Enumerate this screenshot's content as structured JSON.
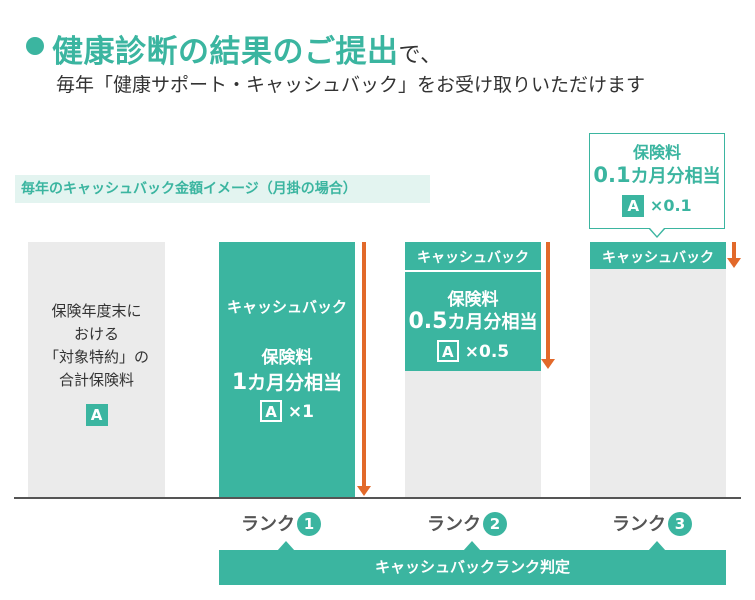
{
  "header": {
    "title": "健康診断の結果のご提出",
    "title_suffix": "で、",
    "subtitle": "毎年「健康サポート・キャッシュバック」をお受け取りいただけます"
  },
  "image_label": "毎年のキャッシュバック金額イメージ（月掛の場合）",
  "base_column": {
    "lines": [
      "保険年度末に",
      "おける",
      "「対象特約」の",
      "合計保険料"
    ],
    "badge": "A"
  },
  "rank1": {
    "cashback_label": "キャッシュバック",
    "premium": "保険料",
    "month_num": "1",
    "month_text": "カ月分相当",
    "badge": "A",
    "multiplier": "×1",
    "fill_fraction": 1.0
  },
  "rank2": {
    "cashback_label": "キャッシュバック",
    "premium": "保険料",
    "month_num": "0.5",
    "month_text": "カ月分相当",
    "badge": "A",
    "multiplier": "×0.5",
    "fill_fraction": 0.5
  },
  "rank3": {
    "cashback_label": "キャッシュバック",
    "premium": "保険料",
    "month_num": "0.1",
    "month_text": "カ月分相当",
    "badge": "A",
    "multiplier": "×0.1",
    "fill_fraction": 0.1
  },
  "ranks": {
    "label": "ランク",
    "numbers": [
      "1",
      "2",
      "3"
    ]
  },
  "judgment_bar": "キャッシュバックランク判定",
  "colors": {
    "accent": "#3bb5a0",
    "arrow": "#e2692a",
    "column_bg": "#ebebeb",
    "label_bg": "#e3f4f0"
  }
}
